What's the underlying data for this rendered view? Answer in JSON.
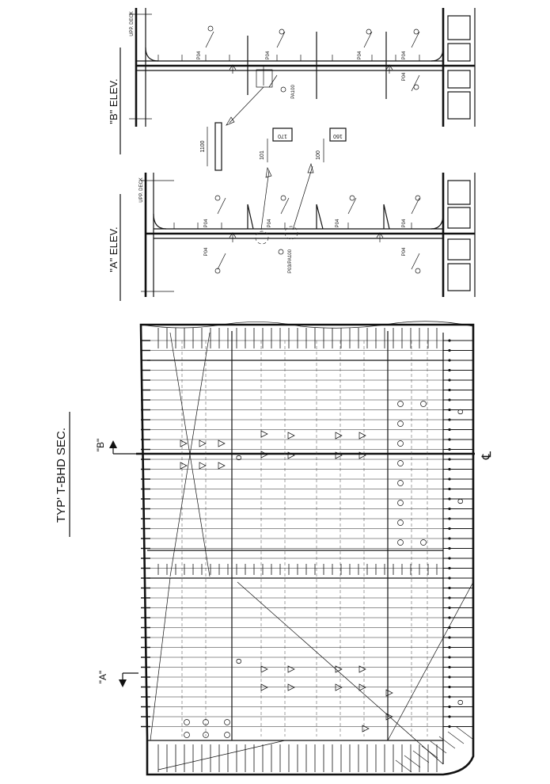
{
  "labels": {
    "section_title": "TYP' T-BHD SEC.",
    "view_a_marker": "\"A\"",
    "view_b_marker": "\"B\"",
    "centerline": "℄",
    "a_elev_title": "\"A\" ELEV.",
    "b_elev_title": "\"B\" ELEV.",
    "upp_deck_a": "UPP. DECK",
    "upp_deck_b": "UPP. DECK",
    "p04": "P04",
    "pa100": "PA100",
    "p03_pa100": "P03/PA100",
    "dim_1100": "1100",
    "dim_101": "101",
    "dim_100": "100",
    "dim_170": "170",
    "dim_160": "160",
    "weld_o": "O"
  }
}
